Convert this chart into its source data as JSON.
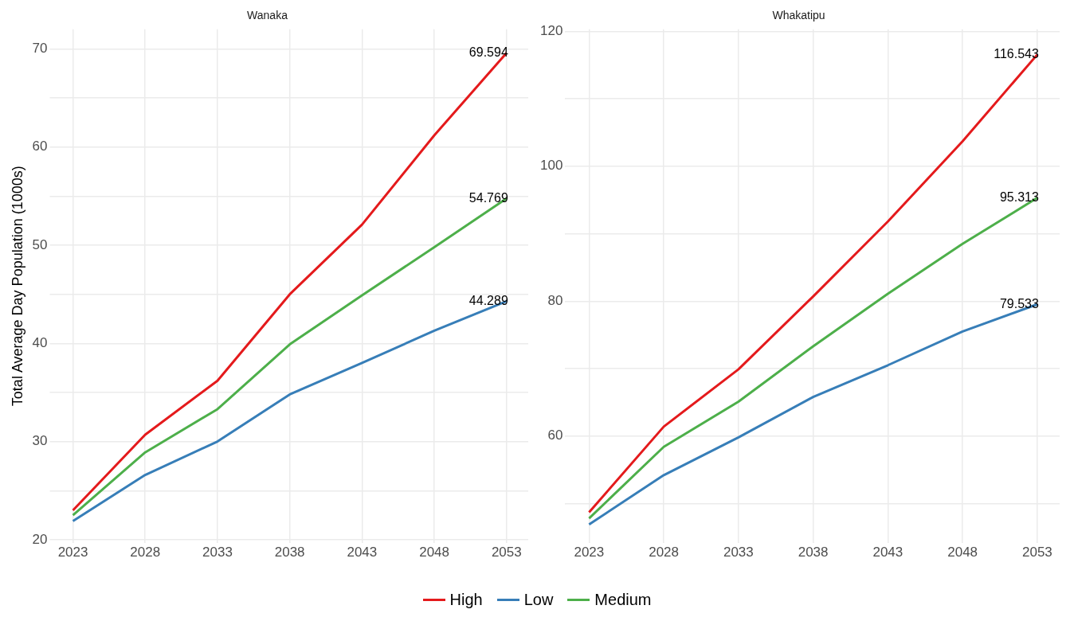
{
  "chart_data": [
    {
      "type": "line",
      "title": "Wanaka",
      "ylabel": "Total Average Day Population (1000s)",
      "x": [
        2023,
        2028,
        2033,
        2038,
        2043,
        2048,
        2053
      ],
      "xlim": [
        2021.4,
        2054.5
      ],
      "xticks": [
        2023,
        2028,
        2033,
        2038,
        2043,
        2048,
        2053
      ],
      "ylim": [
        19.7,
        72
      ],
      "yticks": [
        20,
        {
          "value": 25,
          "label": null
        },
        30,
        {
          "value": 35,
          "label": null
        },
        40,
        {
          "value": 45,
          "label": null
        },
        50,
        {
          "value": 55,
          "label": null
        },
        60,
        {
          "value": 65,
          "label": null
        },
        70
      ],
      "grid": true,
      "legend": "bottom",
      "marker": "none",
      "line_style": "solid",
      "series": [
        {
          "name": "High",
          "color": "#e41a1c",
          "values": [
            23.0,
            30.7,
            36.2,
            45.0,
            52.1,
            61.2,
            69.594
          ],
          "value_labels": [
            null,
            null,
            null,
            null,
            null,
            null,
            "69.594"
          ]
        },
        {
          "name": "Low",
          "color": "#377eb8",
          "values": [
            21.9,
            26.6,
            30.0,
            34.8,
            38.0,
            41.3,
            44.289
          ],
          "value_labels": [
            null,
            null,
            null,
            null,
            null,
            null,
            "44.289"
          ]
        },
        {
          "name": "Medium",
          "color": "#4daf4a",
          "values": [
            22.5,
            28.9,
            33.3,
            39.9,
            44.9,
            49.8,
            54.769
          ],
          "value_labels": [
            null,
            null,
            null,
            null,
            null,
            null,
            "54.769"
          ]
        }
      ]
    },
    {
      "type": "line",
      "title": "Whakatipu",
      "x": [
        2023,
        2028,
        2033,
        2038,
        2043,
        2048,
        2053
      ],
      "xlim": [
        2021.4,
        2054.5
      ],
      "xticks": [
        2023,
        2028,
        2033,
        2038,
        2043,
        2048,
        2053
      ],
      "ylim": [
        44.2,
        120.3
      ],
      "yticks": [
        {
          "value": 50,
          "label": null
        },
        60,
        {
          "value": 70,
          "label": null
        },
        80,
        {
          "value": 90,
          "label": null
        },
        100,
        {
          "value": 110,
          "label": null
        },
        120
      ],
      "grid": true,
      "marker": "none",
      "line_style": "solid",
      "series": [
        {
          "name": "High",
          "color": "#e41a1c",
          "values": [
            48.7,
            61.4,
            69.9,
            80.7,
            91.8,
            103.7,
            116.543
          ],
          "value_labels": [
            null,
            null,
            null,
            null,
            null,
            null,
            "116.543"
          ]
        },
        {
          "name": "Low",
          "color": "#377eb8",
          "values": [
            46.9,
            54.2,
            59.8,
            65.8,
            70.5,
            75.5,
            79.533
          ],
          "value_labels": [
            null,
            null,
            null,
            null,
            null,
            null,
            "79.533"
          ]
        },
        {
          "name": "Medium",
          "color": "#4daf4a",
          "values": [
            47.8,
            58.4,
            65.1,
            73.3,
            81.1,
            88.5,
            95.313
          ],
          "value_labels": [
            null,
            null,
            null,
            null,
            null,
            null,
            "95.313"
          ]
        }
      ]
    }
  ]
}
